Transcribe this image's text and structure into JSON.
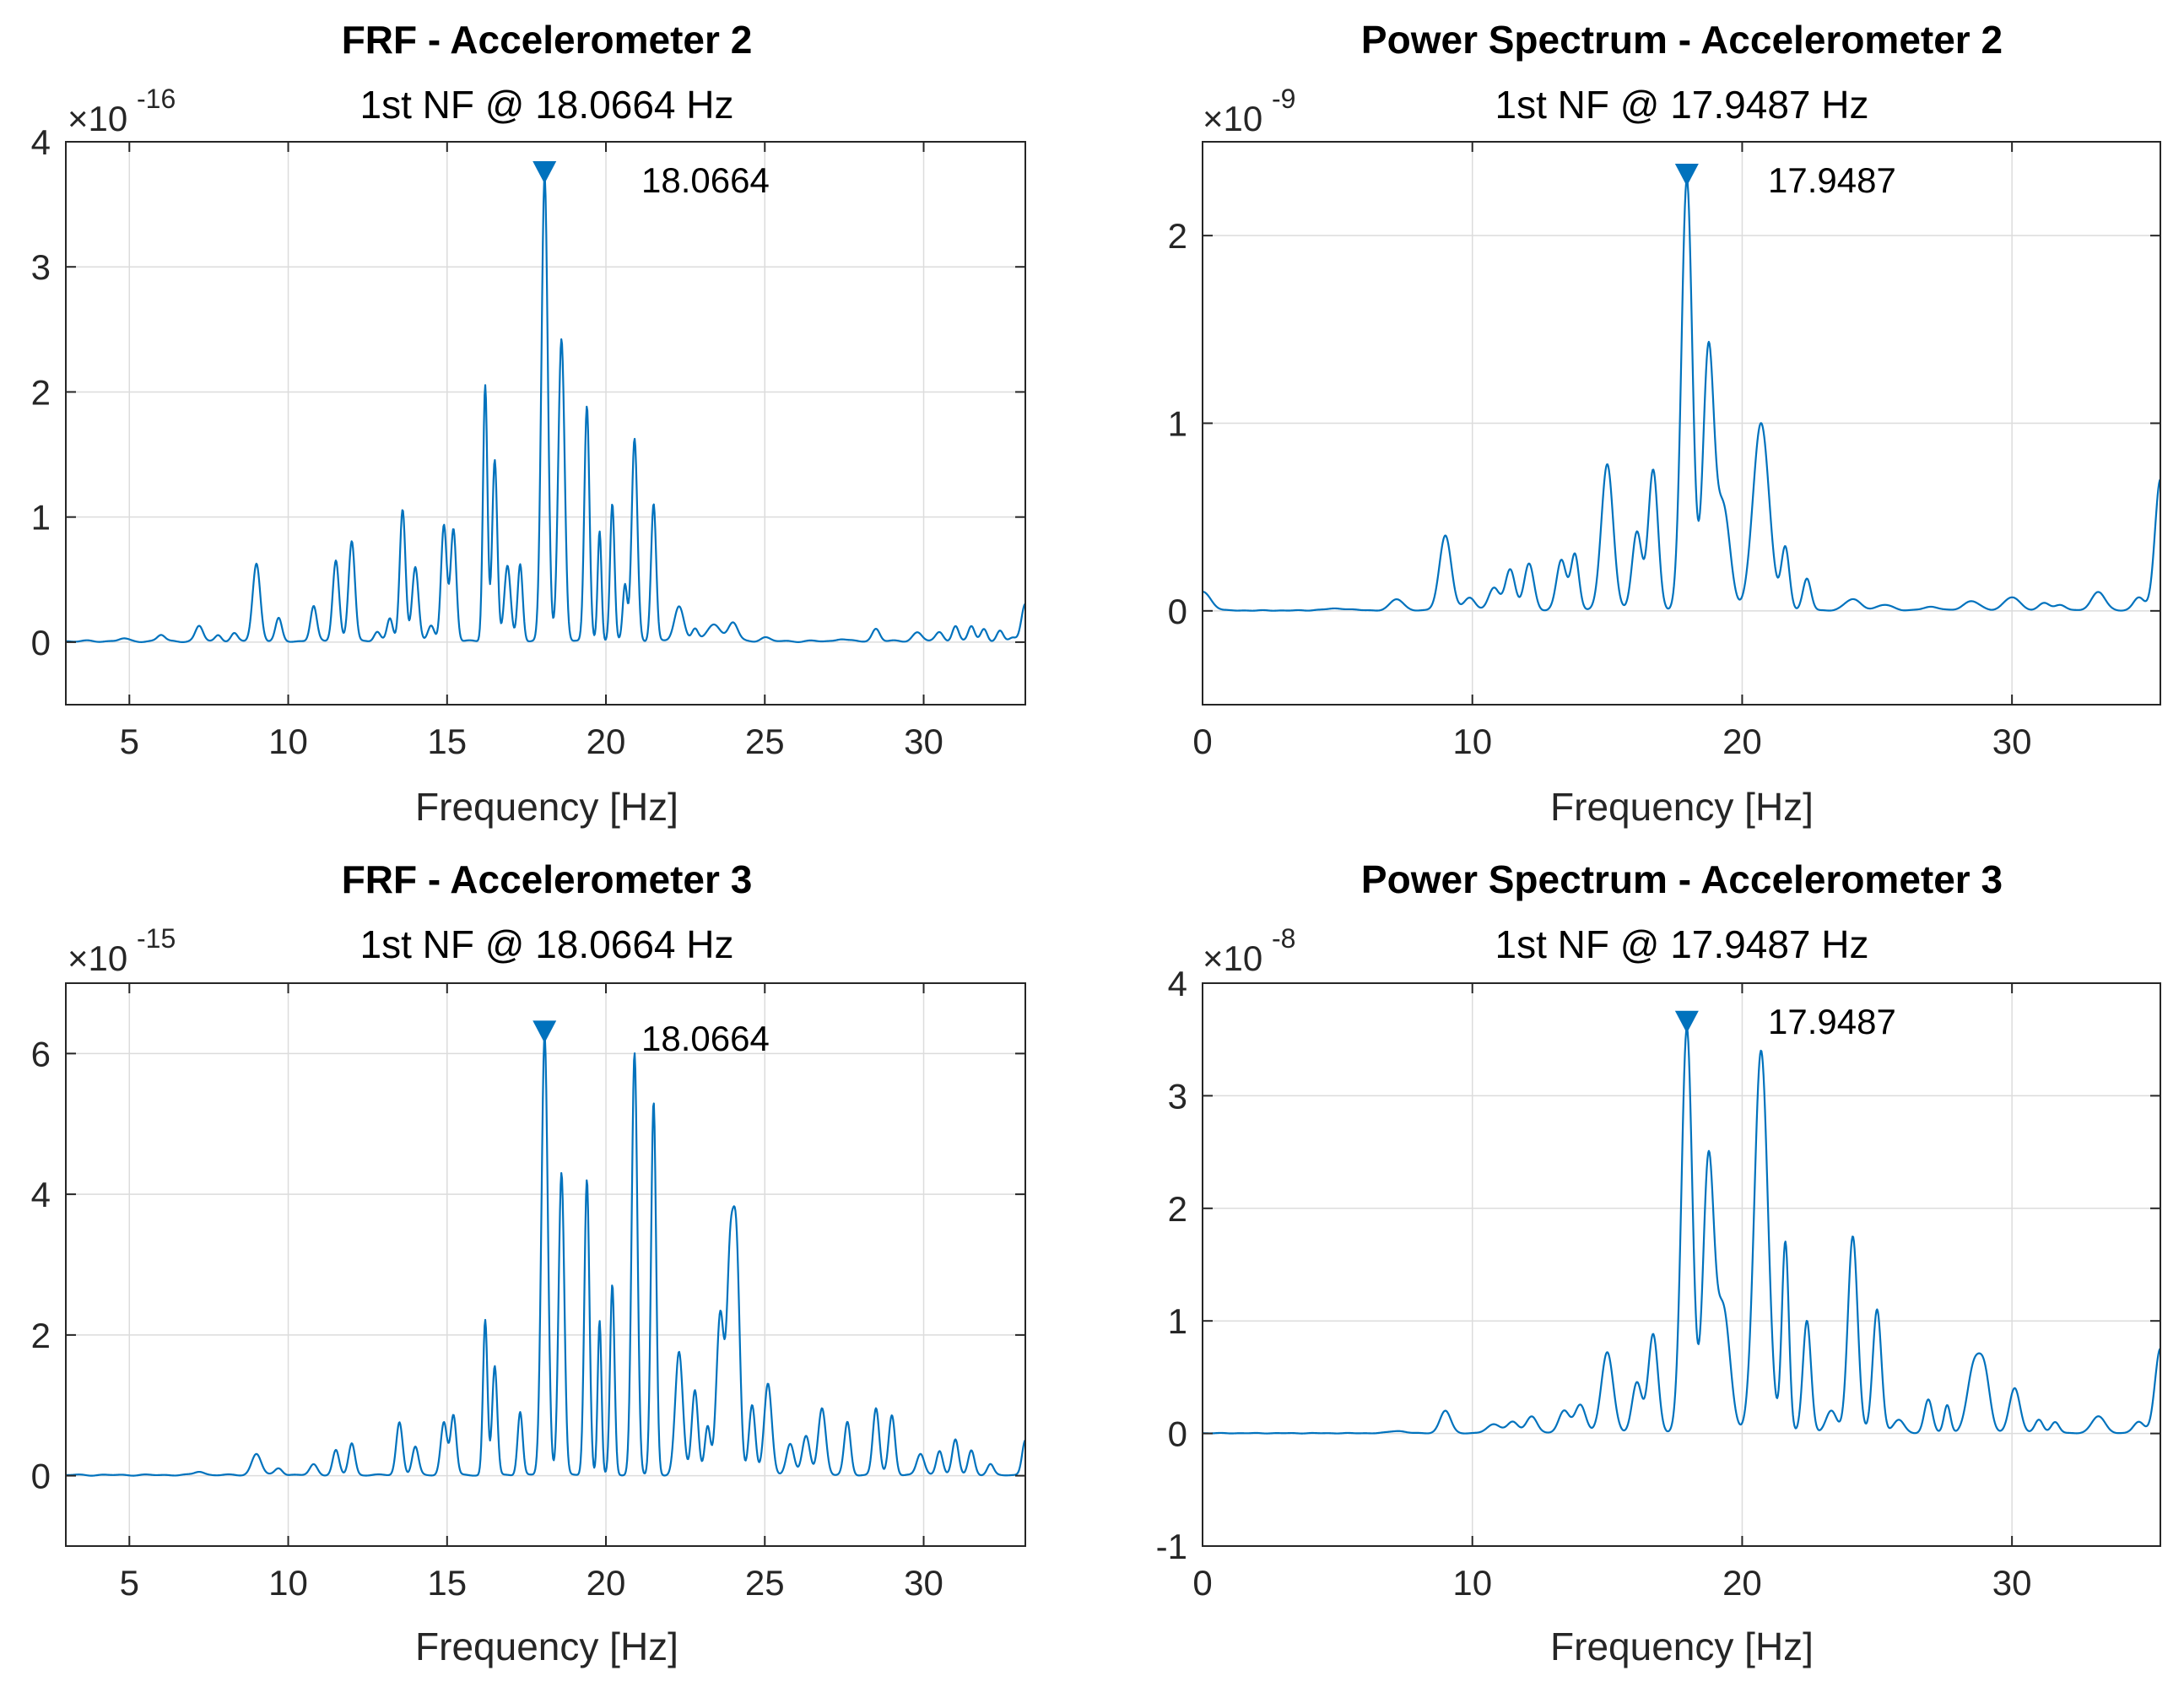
{
  "colors": {
    "series": "#0072BD",
    "grid": "#dcdcdc",
    "axis": "#262626",
    "background": "#ffffff"
  },
  "chart_data": [
    {
      "type": "line",
      "title": "FRF - Accelerometer 2",
      "subtitle": "1st NF @ 18.0664 Hz",
      "xlabel": "Frequency [Hz]",
      "ylabel": "",
      "exponent_base": "×10",
      "exponent": "-16",
      "xlim": [
        3,
        33.2
      ],
      "ylim": [
        -0.5,
        4
      ],
      "xticks": [
        5,
        10,
        15,
        20,
        25,
        30
      ],
      "xtick_labels": [
        "5",
        "10",
        "15",
        "20",
        "25",
        "30"
      ],
      "yticks": [
        0,
        1,
        2,
        3,
        4
      ],
      "ytick_labels": [
        "0",
        "1",
        "2",
        "3",
        "4"
      ],
      "grid": true,
      "peak": {
        "x": 18.0664,
        "y": 3.75,
        "label": "18.0664"
      },
      "baseline": 0,
      "noise": 0.015,
      "peaks": [
        [
          4.8,
          0.02,
          0.15
        ],
        [
          6.0,
          0.05,
          0.12
        ],
        [
          7.2,
          0.12,
          0.12
        ],
        [
          7.8,
          0.05,
          0.1
        ],
        [
          8.3,
          0.06,
          0.1
        ],
        [
          9.0,
          0.62,
          0.12
        ],
        [
          9.7,
          0.18,
          0.1
        ],
        [
          10.8,
          0.28,
          0.1
        ],
        [
          11.5,
          0.65,
          0.1
        ],
        [
          12.0,
          0.8,
          0.1
        ],
        [
          12.8,
          0.08,
          0.1
        ],
        [
          13.2,
          0.18,
          0.09
        ],
        [
          13.6,
          1.05,
          0.09
        ],
        [
          14.0,
          0.6,
          0.1
        ],
        [
          14.5,
          0.12,
          0.1
        ],
        [
          14.9,
          0.93,
          0.09
        ],
        [
          15.2,
          0.9,
          0.09
        ],
        [
          16.2,
          2.05,
          0.07
        ],
        [
          16.5,
          1.45,
          0.08
        ],
        [
          16.9,
          0.6,
          0.1
        ],
        [
          17.3,
          0.62,
          0.08
        ],
        [
          18.07,
          3.72,
          0.1
        ],
        [
          18.6,
          2.42,
          0.1
        ],
        [
          19.4,
          1.88,
          0.08
        ],
        [
          19.8,
          0.88,
          0.06
        ],
        [
          20.2,
          1.1,
          0.07
        ],
        [
          20.6,
          0.45,
          0.07
        ],
        [
          20.9,
          1.62,
          0.09
        ],
        [
          21.5,
          1.1,
          0.08
        ],
        [
          22.3,
          0.28,
          0.15
        ],
        [
          22.8,
          0.1,
          0.1
        ],
        [
          23.4,
          0.14,
          0.2
        ],
        [
          24.0,
          0.15,
          0.15
        ],
        [
          25.0,
          0.03,
          0.15
        ],
        [
          27.4,
          0.02,
          0.15
        ],
        [
          28.5,
          0.1,
          0.12
        ],
        [
          29.8,
          0.07,
          0.15
        ],
        [
          30.5,
          0.07,
          0.12
        ],
        [
          31.0,
          0.12,
          0.1
        ],
        [
          31.5,
          0.12,
          0.1
        ],
        [
          31.9,
          0.1,
          0.1
        ],
        [
          32.4,
          0.08,
          0.1
        ],
        [
          32.8,
          0.03,
          0.1
        ],
        [
          33.2,
          0.3,
          0.12
        ]
      ]
    },
    {
      "type": "line",
      "title": "Power Spectrum - Accelerometer 2",
      "subtitle": "1st NF @ 17.9487 Hz",
      "xlabel": "Frequency [Hz]",
      "ylabel": "",
      "exponent_base": "×10",
      "exponent": "-9",
      "xlim": [
        0,
        35.5
      ],
      "ylim": [
        -0.5,
        2.5
      ],
      "xticks": [
        0,
        10,
        20,
        30
      ],
      "xtick_labels": [
        "0",
        "10",
        "20",
        "30"
      ],
      "yticks": [
        0,
        1,
        2
      ],
      "ytick_labels": [
        "0",
        "1",
        "2"
      ],
      "grid": true,
      "peak": {
        "x": 17.9487,
        "y": 2.32,
        "label": "17.9487"
      },
      "baseline": 0,
      "noise": 0.004,
      "peaks": [
        [
          0.0,
          0.1,
          0.3
        ],
        [
          5.0,
          0.01,
          0.5
        ],
        [
          7.2,
          0.06,
          0.25
        ],
        [
          9.0,
          0.4,
          0.22
        ],
        [
          9.9,
          0.07,
          0.2
        ],
        [
          10.8,
          0.12,
          0.2
        ],
        [
          11.4,
          0.22,
          0.18
        ],
        [
          12.1,
          0.25,
          0.18
        ],
        [
          13.3,
          0.27,
          0.18
        ],
        [
          13.8,
          0.3,
          0.15
        ],
        [
          15.0,
          0.78,
          0.22
        ],
        [
          16.1,
          0.42,
          0.18
        ],
        [
          16.7,
          0.75,
          0.18
        ],
        [
          17.95,
          2.3,
          0.2
        ],
        [
          18.75,
          1.38,
          0.2
        ],
        [
          19.3,
          0.55,
          0.25
        ],
        [
          20.7,
          1.0,
          0.3
        ],
        [
          21.6,
          0.33,
          0.15
        ],
        [
          22.4,
          0.17,
          0.15
        ],
        [
          24.1,
          0.06,
          0.3
        ],
        [
          25.3,
          0.03,
          0.3
        ],
        [
          27.0,
          0.02,
          0.3
        ],
        [
          28.5,
          0.05,
          0.3
        ],
        [
          30.0,
          0.07,
          0.3
        ],
        [
          31.2,
          0.04,
          0.2
        ],
        [
          31.8,
          0.03,
          0.2
        ],
        [
          33.2,
          0.1,
          0.25
        ],
        [
          34.7,
          0.07,
          0.2
        ],
        [
          35.5,
          0.7,
          0.2
        ]
      ]
    },
    {
      "type": "line",
      "title": "FRF - Accelerometer 3",
      "subtitle": "1st NF @ 18.0664 Hz",
      "xlabel": "Frequency [Hz]",
      "ylabel": "",
      "exponent_base": "×10",
      "exponent": "-15",
      "xlim": [
        3,
        33.2
      ],
      "ylim": [
        -1,
        7
      ],
      "xticks": [
        5,
        10,
        15,
        20,
        25,
        30
      ],
      "xtick_labels": [
        "5",
        "10",
        "15",
        "20",
        "25",
        "30"
      ],
      "yticks": [
        0,
        2,
        4,
        6
      ],
      "ytick_labels": [
        "0",
        "2",
        "4",
        "6"
      ],
      "grid": true,
      "peak": {
        "x": 18.0664,
        "y": 6.3,
        "label": "18.0664"
      },
      "baseline": 0,
      "noise": 0.02,
      "peaks": [
        [
          7.2,
          0.05,
          0.15
        ],
        [
          9.0,
          0.3,
          0.15
        ],
        [
          9.7,
          0.1,
          0.12
        ],
        [
          10.8,
          0.15,
          0.12
        ],
        [
          11.5,
          0.35,
          0.1
        ],
        [
          12.0,
          0.45,
          0.1
        ],
        [
          13.5,
          0.75,
          0.1
        ],
        [
          14.0,
          0.4,
          0.1
        ],
        [
          14.9,
          0.75,
          0.1
        ],
        [
          15.2,
          0.85,
          0.09
        ],
        [
          16.2,
          2.2,
          0.07
        ],
        [
          16.5,
          1.55,
          0.08
        ],
        [
          17.3,
          0.9,
          0.08
        ],
        [
          18.07,
          6.25,
          0.1
        ],
        [
          18.6,
          4.3,
          0.09
        ],
        [
          19.4,
          4.2,
          0.08
        ],
        [
          19.8,
          2.2,
          0.06
        ],
        [
          20.2,
          2.7,
          0.07
        ],
        [
          20.9,
          6.0,
          0.09
        ],
        [
          21.5,
          5.3,
          0.08
        ],
        [
          22.3,
          1.75,
          0.12
        ],
        [
          22.8,
          1.2,
          0.1
        ],
        [
          23.2,
          0.7,
          0.09
        ],
        [
          23.6,
          2.3,
          0.12
        ],
        [
          23.9,
          2.7,
          0.1
        ],
        [
          24.1,
          3.25,
          0.11
        ],
        [
          24.6,
          1.0,
          0.1
        ],
        [
          25.1,
          1.3,
          0.12
        ],
        [
          25.8,
          0.45,
          0.12
        ],
        [
          26.3,
          0.55,
          0.12
        ],
        [
          26.8,
          0.95,
          0.12
        ],
        [
          27.6,
          0.75,
          0.1
        ],
        [
          28.5,
          0.95,
          0.1
        ],
        [
          29.0,
          0.85,
          0.1
        ],
        [
          29.9,
          0.3,
          0.12
        ],
        [
          30.5,
          0.35,
          0.1
        ],
        [
          31.0,
          0.5,
          0.1
        ],
        [
          31.5,
          0.35,
          0.1
        ],
        [
          32.1,
          0.15,
          0.1
        ],
        [
          33.2,
          0.5,
          0.1
        ]
      ]
    },
    {
      "type": "line",
      "title": "Power Spectrum - Accelerometer 3",
      "subtitle": "1st NF @ 17.9487 Hz",
      "xlabel": "Frequency [Hz]",
      "ylabel": "",
      "exponent_base": "×10",
      "exponent": "-8",
      "xlim": [
        0,
        35.5
      ],
      "ylim": [
        -1,
        4
      ],
      "xticks": [
        0,
        10,
        20,
        30
      ],
      "xtick_labels": [
        "0",
        "10",
        "20",
        "30"
      ],
      "yticks": [
        -1,
        0,
        1,
        2,
        3,
        4
      ],
      "ytick_labels": [
        "-1",
        "0",
        "1",
        "2",
        "3",
        "4"
      ],
      "grid": true,
      "peak": {
        "x": 17.9487,
        "y": 3.65,
        "label": "17.9487"
      },
      "baseline": 0,
      "noise": 0.005,
      "peaks": [
        [
          7.2,
          0.02,
          0.3
        ],
        [
          9.0,
          0.2,
          0.2
        ],
        [
          10.8,
          0.08,
          0.25
        ],
        [
          11.5,
          0.1,
          0.2
        ],
        [
          12.2,
          0.15,
          0.2
        ],
        [
          13.4,
          0.2,
          0.2
        ],
        [
          14.0,
          0.25,
          0.2
        ],
        [
          15.0,
          0.72,
          0.22
        ],
        [
          16.1,
          0.45,
          0.18
        ],
        [
          16.7,
          0.88,
          0.18
        ],
        [
          17.95,
          3.6,
          0.2
        ],
        [
          18.75,
          2.4,
          0.2
        ],
        [
          19.3,
          1.1,
          0.25
        ],
        [
          20.7,
          3.4,
          0.25
        ],
        [
          21.6,
          1.7,
          0.13
        ],
        [
          22.4,
          1.0,
          0.15
        ],
        [
          23.3,
          0.2,
          0.2
        ],
        [
          24.1,
          1.75,
          0.18
        ],
        [
          25.0,
          1.1,
          0.16
        ],
        [
          25.8,
          0.12,
          0.2
        ],
        [
          26.9,
          0.3,
          0.15
        ],
        [
          27.6,
          0.25,
          0.12
        ],
        [
          28.6,
          0.6,
          0.25
        ],
        [
          29.0,
          0.45,
          0.2
        ],
        [
          30.1,
          0.4,
          0.2
        ],
        [
          31.0,
          0.12,
          0.15
        ],
        [
          31.6,
          0.1,
          0.15
        ],
        [
          33.2,
          0.15,
          0.25
        ],
        [
          34.7,
          0.1,
          0.2
        ],
        [
          35.5,
          0.75,
          0.2
        ]
      ]
    }
  ]
}
